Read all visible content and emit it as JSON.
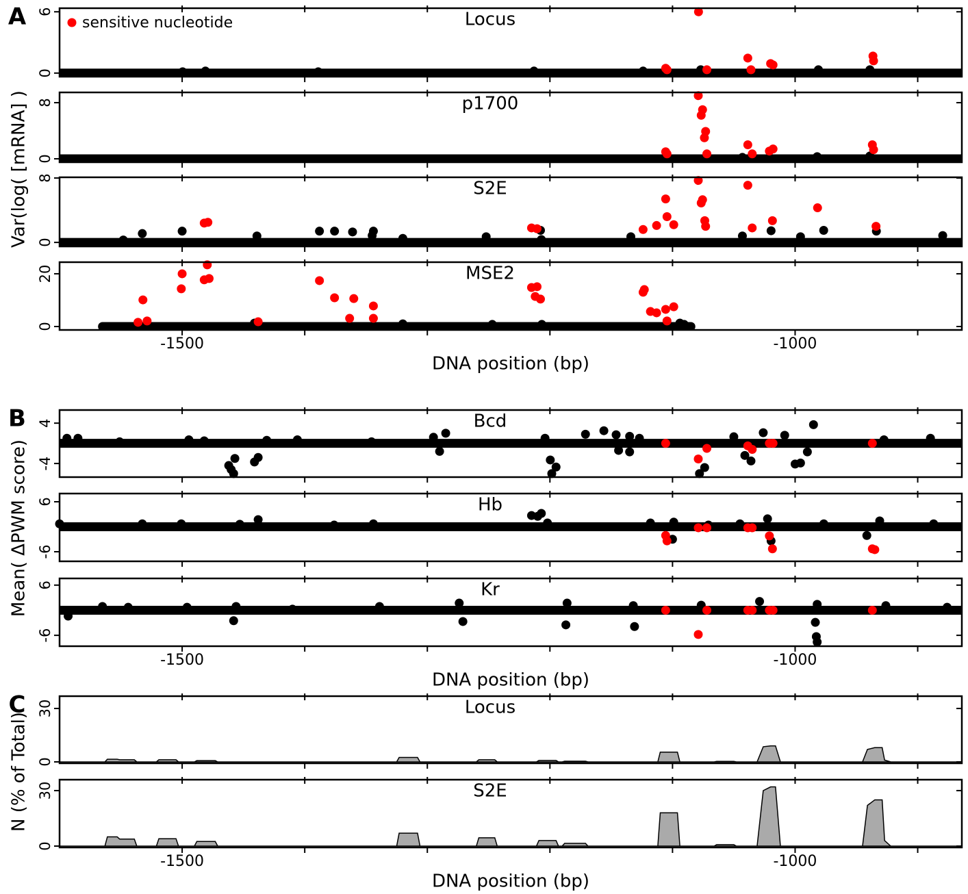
{
  "chart_data": [
    {
      "type": "scatter",
      "panel_label": "A",
      "ylabel": "Var(log( [mRNA] )",
      "title": "Locus",
      "legend": "upper left",
      "xlim": [
        -1600,
        -864
      ],
      "xticks": [
        -1500,
        -1000
      ],
      "xminor_ticks": [
        -1400,
        -1300,
        -1200,
        -1100,
        -900
      ],
      "ylim": [
        -0.35,
        6.35
      ],
      "yticks": [
        0,
        6
      ],
      "baseline": {
        "x": [
          -1600,
          -864
        ],
        "values": [
          0,
          0
        ],
        "color": "#000000"
      },
      "series": [
        {
          "color": "#000000",
          "x": [
            -1499.6,
            -1481,
            -1389,
            -1213,
            -1124,
            -1077,
            -981,
            -939
          ],
          "values": [
            0.13,
            0.2,
            0.13,
            0.2,
            0.2,
            0.33,
            0.33,
            0.33
          ]
        },
        {
          "name": "sensitive nucleotide",
          "color": "#ff0000",
          "x": [
            -1078.8,
            -1105.6,
            -1104.5,
            -1072,
            -1038.6,
            -1036,
            -1020,
            -1018,
            -936.5,
            -936
          ],
          "values": [
            6,
            0.47,
            0.33,
            0.33,
            1.47,
            0.33,
            0.93,
            0.8,
            1.67,
            1.2
          ]
        }
      ]
    },
    {
      "type": "scatter",
      "title": "p1700",
      "xlim": [
        -1600,
        -864
      ],
      "xticks": [
        -1500,
        -1000
      ],
      "xminor_ticks": [
        -1400,
        -1300,
        -1200,
        -1100,
        -900
      ],
      "ylim": [
        -0.49,
        9.46
      ],
      "yticks": [
        0,
        8
      ],
      "baseline": {
        "x": [
          -1600,
          -864
        ],
        "values": [
          0,
          0
        ],
        "color": "#000000"
      },
      "series": [
        {
          "color": "#000000",
          "x": [
            -1043,
            -982,
            -939
          ],
          "values": [
            0.2,
            0.3,
            0.4
          ]
        },
        {
          "color": "#ff0000",
          "x": [
            -1079,
            -1075.5,
            -1076.6,
            -1073,
            -1074,
            -1072,
            -1105.6,
            -1104.5,
            -1038.6,
            -1035,
            -1021,
            -1018,
            -937,
            -936
          ],
          "values": [
            9.0,
            7.0,
            6.2,
            3.9,
            3.0,
            0.7,
            1.0,
            0.7,
            2.0,
            0.7,
            1.1,
            1.4,
            2.0,
            1.3
          ]
        }
      ]
    },
    {
      "type": "scatter",
      "title": "S2E",
      "xlim": [
        -1600,
        -864
      ],
      "xticks": [
        -1500,
        -1000
      ],
      "xminor_ticks": [
        -1400,
        -1300,
        -1200,
        -1100,
        -900
      ],
      "ylim": [
        -0.5,
        8.09
      ],
      "yticks": [
        0,
        8
      ],
      "baseline": {
        "x": [
          -1600,
          -864
        ],
        "values": [
          0,
          0
        ],
        "color": "#000000"
      },
      "series": [
        {
          "color": "#000000",
          "x": [
            -1548,
            -1532.5,
            -1500,
            -1439,
            -1388,
            -1375.7,
            -1361,
            -1344,
            -1345,
            -1320,
            -1252,
            -1207.7,
            -1207,
            -1134,
            -1043,
            -1019.6,
            -995.6,
            -976.7,
            -933.7,
            -879.6
          ],
          "values": [
            0.3,
            1.1,
            1.4,
            0.8,
            1.4,
            1.4,
            1.3,
            1.4,
            0.85,
            0.5,
            0.7,
            1.5,
            0.35,
            0.7,
            0.8,
            1.45,
            0.7,
            1.5,
            1.4,
            0.85
          ]
        },
        {
          "color": "#ff0000",
          "x": [
            -1079,
            -1038.6,
            -1105.6,
            -1075.5,
            -1076.6,
            -1104.5,
            -981.7,
            -1482,
            -1479,
            -1215,
            -1210.5,
            -1124,
            -1113,
            -1099,
            -1073.7,
            -1073,
            -1035,
            -1018.5,
            -934
          ],
          "values": [
            7.7,
            7.1,
            5.4,
            5.3,
            4.9,
            3.2,
            4.3,
            2.4,
            2.5,
            1.8,
            1.7,
            1.6,
            2.1,
            2.2,
            2.7,
            2.0,
            1.8,
            2.7,
            2.0
          ]
        }
      ]
    },
    {
      "type": "scatter",
      "title": "MSE2",
      "xlabel": "DNA position (bp)",
      "xlim": [
        -1600,
        -864
      ],
      "xticks": [
        -1500,
        -1000
      ],
      "xminor_ticks": [
        -1400,
        -1300,
        -1200,
        -1100,
        -900
      ],
      "ylim": [
        -1.3,
        24.4
      ],
      "yticks": [
        0,
        20
      ],
      "baseline": {
        "x": [
          -1565,
          -1085
        ],
        "values": [
          0,
          0
        ],
        "color": "#000000"
      },
      "series": [
        {
          "color": "#000000",
          "x": [
            -1441,
            -1320,
            -1247,
            -1206.6,
            -1094,
            -1090.5
          ],
          "values": [
            1.3,
            1.0,
            0.8,
            0.8,
            1.3,
            0.8
          ]
        },
        {
          "color": "#ff0000",
          "x": [
            -1479.5,
            -1482,
            -1478,
            -1500,
            -1500.7,
            -1532,
            -1536,
            -1528.6,
            -1388,
            -1375.7,
            -1360,
            -1363.4,
            -1344,
            -1344,
            -1215,
            -1210.5,
            -1212,
            -1207.7,
            -1124,
            -1123,
            -1118,
            -1113,
            -1105.6,
            -1099,
            -1104.5,
            -1438
          ],
          "values": [
            23.4,
            17.7,
            18.2,
            20.0,
            14.3,
            10.1,
            1.6,
            2.1,
            17.4,
            10.9,
            10.6,
            3.1,
            7.8,
            3.1,
            14.8,
            15.1,
            11.4,
            10.4,
            13.0,
            14.0,
            5.7,
            5.2,
            6.5,
            7.5,
            2.1,
            1.8
          ]
        }
      ]
    },
    {
      "type": "scatter",
      "panel_label": "B",
      "ylabel": "Mean( ΔPWM score)",
      "title": "Bcd",
      "xlim": [
        -1600,
        -864
      ],
      "xticks": [
        -1500,
        -1000
      ],
      "xminor_ticks": [
        -1400,
        -1300,
        -1200,
        -1100,
        -900
      ],
      "ylim": [
        -6.7,
        6.6
      ],
      "yticks": [
        -4,
        4
      ],
      "baseline": {
        "x": [
          -1600,
          -864
        ],
        "values": [
          0,
          0
        ],
        "color": "#000000"
      },
      "series": [
        {
          "color": "#000000",
          "x": [
            -1594,
            -1585,
            -1551,
            -1494.5,
            -1482,
            -1462,
            -1460,
            -1458,
            -1457,
            -1441,
            -1438,
            -1431,
            -1406,
            -1345.5,
            -1295,
            -1285,
            -1290,
            -1204,
            -1199.7,
            -1198.5,
            -1195,
            -1171,
            -1156,
            -1146,
            -1135,
            -1127,
            -1144,
            -1135,
            -1078,
            -1073.8,
            -1050,
            -1041,
            -1036,
            -1026,
            -1008.5,
            -1000,
            -995.6,
            -990,
            -985,
            -927.5,
            -889.6
          ],
          "values": [
            1.0,
            1.0,
            0.3,
            0.7,
            0.5,
            -4.4,
            -5.2,
            -6.0,
            -3.0,
            -3.7,
            -2.8,
            0.6,
            0.7,
            0.3,
            1.2,
            2.0,
            -1.6,
            1.0,
            -3.3,
            -6.0,
            -4.7,
            1.8,
            2.5,
            1.7,
            1.4,
            1.0,
            -1.4,
            -1.7,
            -6.0,
            -4.8,
            1.3,
            -2.4,
            -3.5,
            2.1,
            1.6,
            -4.1,
            -3.9,
            -1.7,
            3.7,
            0.7,
            1.0
          ]
        },
        {
          "color": "#ff0000",
          "x": [
            -1105.6,
            -1079,
            -1072,
            -1038.6,
            -1035,
            -1021,
            -1018,
            -937
          ],
          "values": [
            0,
            -3.1,
            -1.0,
            -0.5,
            -1.2,
            0,
            0,
            0
          ]
        }
      ]
    },
    {
      "type": "scatter",
      "title": "Hb",
      "xlim": [
        -1600,
        -864
      ],
      "xticks": [
        -1500,
        -1000
      ],
      "xminor_ticks": [
        -1400,
        -1300,
        -1200,
        -1100,
        -900
      ],
      "ylim": [
        -8.3,
        7.97
      ],
      "yticks": [
        -6,
        6
      ],
      "baseline": {
        "x": [
          -1600,
          -864
        ],
        "values": [
          0,
          0
        ],
        "color": "#000000"
      },
      "series": [
        {
          "color": "#000000",
          "x": [
            -1600,
            -1532.5,
            -1500.7,
            -1453,
            -1438,
            -1376,
            -1344,
            -1215,
            -1210,
            -1207,
            -1202,
            -1118,
            -1100,
            -1099,
            -1070.7,
            -1045,
            -1022.5,
            -976.6,
            -941.5,
            -931,
            -887,
            -1019.6
          ],
          "values": [
            0.7,
            0.7,
            0.7,
            0.6,
            1.7,
            0.4,
            0.7,
            2.7,
            2.5,
            3.2,
            0.9,
            0.9,
            -3.0,
            1.1,
            0.4,
            0.7,
            1.9,
            0.7,
            -2.1,
            1.4,
            0.7,
            -3.4
          ]
        },
        {
          "color": "#ff0000",
          "x": [
            -1105.6,
            -1104.5,
            -1079,
            -1072,
            -1038.6,
            -1035,
            -1021,
            -1018.5,
            -937,
            -935
          ],
          "values": [
            -2.1,
            -3.4,
            -0.25,
            -0.25,
            -0.25,
            -0.25,
            -2.2,
            -5.3,
            -5.3,
            -5.5
          ]
        }
      ]
    },
    {
      "type": "scatter",
      "title": "Kr",
      "xlabel": "DNA position (bp)",
      "xlim": [
        -1600,
        -864
      ],
      "xticks": [
        -1500,
        -1000
      ],
      "xminor_ticks": [
        -1400,
        -1300,
        -1200,
        -1100,
        -900
      ],
      "ylim": [
        -8.6,
        7.6
      ],
      "yticks": [
        -6,
        6
      ],
      "baseline": {
        "x": [
          -1600,
          -864
        ],
        "values": [
          0,
          0
        ],
        "color": "#000000"
      },
      "series": [
        {
          "color": "#000000",
          "x": [
            -1593,
            -1565,
            -1544,
            -1496,
            -1458,
            -1456,
            -1410,
            -1339,
            -1274,
            -1271,
            -1186,
            -1187,
            -1131,
            -1132,
            -1076.6,
            -1029,
            -983.5,
            -982,
            -982.7,
            -982,
            -926,
            -876
          ],
          "values": [
            -1.4,
            0.9,
            0.7,
            0.7,
            -2.5,
            0.9,
            0.25,
            0.9,
            1.7,
            -2.7,
            1.7,
            -3.5,
            -3.9,
            1.1,
            1.2,
            2.1,
            -2.9,
            1.4,
            -6.3,
            -7.6,
            1.1,
            0.7
          ]
        },
        {
          "color": "#ff0000",
          "x": [
            -1105.6,
            -1079,
            -1072,
            -1038.6,
            -1035,
            -1021,
            -1018,
            -937
          ],
          "values": [
            0,
            -5.8,
            0,
            0,
            0,
            0,
            0,
            0
          ]
        }
      ]
    },
    {
      "type": "area",
      "panel_label": "C",
      "ylabel": "N (% of Total)",
      "title": "Locus",
      "color": "#aaaaaa",
      "xlim": [
        -1600,
        -864
      ],
      "xticks": [
        -1500,
        -1000
      ],
      "xminor_ticks": [
        -1400,
        -1300,
        -1200,
        -1100,
        -900
      ],
      "ylim": [
        -0.77,
        36.9
      ],
      "yticks": [
        0,
        30
      ],
      "x": [
        -1600,
        -1563,
        -1561,
        -1553,
        -1551,
        -1539,
        -1537,
        -1521,
        -1519,
        -1505,
        -1503,
        -1490,
        -1488,
        -1473,
        -1471,
        -1325,
        -1323,
        -1308,
        -1306,
        -1260,
        -1258,
        -1245,
        -1243,
        -1211,
        -1209,
        -1195,
        -1193,
        -1190,
        -1188,
        -1171,
        -1169,
        -1112,
        -1110,
        -1096,
        -1094,
        -1066,
        -1064,
        -1050,
        -1048,
        -1031,
        -1026,
        -1020,
        -1016,
        -1012,
        -945,
        -941,
        -935,
        -929,
        -927,
        -922,
        -864
      ],
      "values": [
        0,
        0,
        1.5,
        1.5,
        1.2,
        1.2,
        0,
        0,
        1.2,
        1.2,
        0,
        0,
        0.7,
        0.7,
        0,
        0,
        2.5,
        2.5,
        0,
        0,
        1.2,
        1.2,
        0,
        0,
        0.8,
        0.8,
        0,
        0,
        0.4,
        0.4,
        0,
        0,
        5.5,
        5.5,
        0,
        0,
        0.3,
        0.3,
        0,
        0,
        8.5,
        9,
        9,
        0,
        0,
        7,
        8,
        8,
        1,
        0,
        0
      ]
    },
    {
      "type": "area",
      "title": "S2E",
      "xlabel": "DNA position (bp)",
      "color": "#aaaaaa",
      "xlim": [
        -1600,
        -864
      ],
      "xticks": [
        -1500,
        -1000
      ],
      "xminor_ticks": [
        -1400,
        -1300,
        -1200,
        -1100,
        -900
      ],
      "ylim": [
        -0.74,
        35.9
      ],
      "yticks": [
        0,
        30
      ],
      "x": [
        -1600,
        -1563,
        -1561,
        -1553,
        -1551,
        -1539,
        -1537,
        -1521,
        -1519,
        -1505,
        -1503,
        -1490,
        -1488,
        -1473,
        -1471,
        -1325,
        -1323,
        -1308,
        -1306,
        -1260,
        -1258,
        -1245,
        -1243,
        -1211,
        -1209,
        -1195,
        -1193,
        -1190,
        -1188,
        -1171,
        -1169,
        -1112,
        -1110,
        -1096,
        -1094,
        -1066,
        -1064,
        -1050,
        -1048,
        -1031,
        -1026,
        -1020,
        -1016,
        -1012,
        -945,
        -941,
        -935,
        -929,
        -927,
        -922,
        -864
      ],
      "values": [
        0,
        0,
        5,
        5,
        3.8,
        3.8,
        0,
        0,
        4,
        4,
        0,
        0,
        2.5,
        2.5,
        0,
        0,
        7,
        7,
        0,
        0,
        4.5,
        4.5,
        0,
        0,
        3,
        3,
        0,
        0,
        1.5,
        1.5,
        0,
        0,
        18,
        18,
        0,
        0,
        0.8,
        0.8,
        0,
        0,
        30,
        32,
        32,
        0,
        0,
        22,
        25,
        25,
        3,
        0,
        0
      ]
    }
  ]
}
